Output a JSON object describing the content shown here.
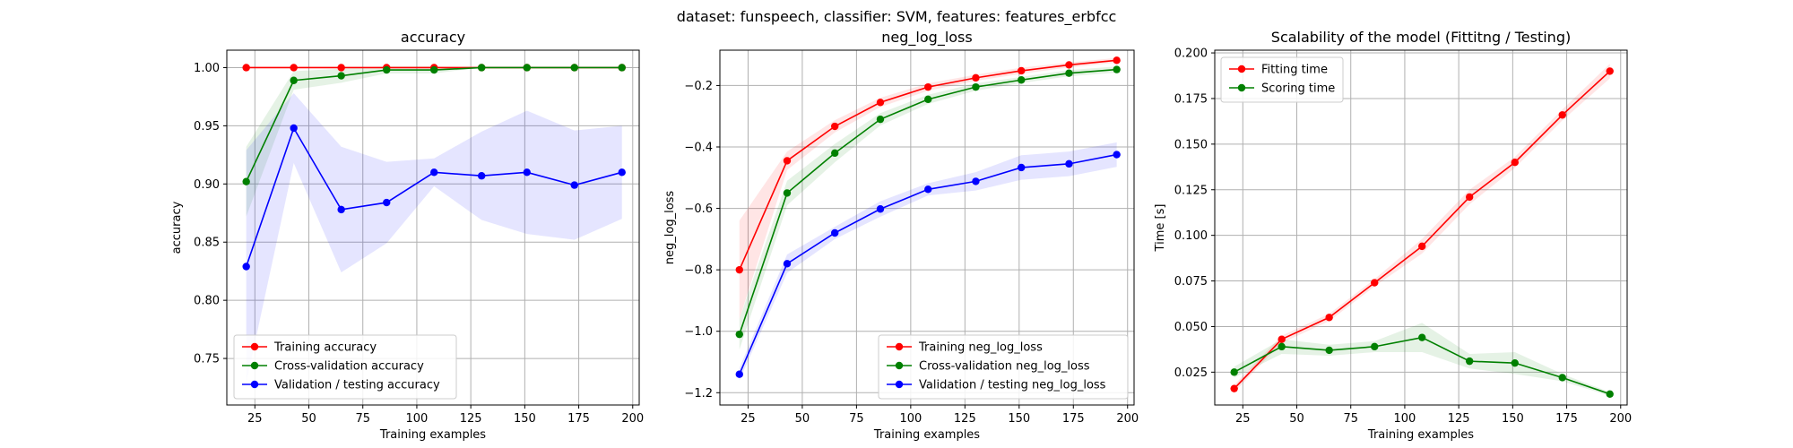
{
  "figure": {
    "suptitle": "dataset: funspeech, classifier: SVM, features: features_erbfcc"
  },
  "colors": {
    "red": "#ff0000",
    "green": "#008000",
    "blue": "#0000ff"
  },
  "chart_data": [
    {
      "type": "line",
      "title": "accuracy",
      "xlabel": "Training examples",
      "ylabel": "accuracy",
      "xlim": [
        12,
        203
      ],
      "ylim": [
        0.71,
        1.015
      ],
      "xticks": [
        25,
        50,
        75,
        100,
        125,
        150,
        175,
        200
      ],
      "yticks": [
        0.75,
        0.8,
        0.85,
        0.9,
        0.95,
        1.0
      ],
      "ytick_labels": [
        "0.75",
        "0.80",
        "0.85",
        "0.90",
        "0.95",
        "1.00"
      ],
      "grid": true,
      "legend": "lower-left",
      "x": [
        21,
        43,
        65,
        86,
        108,
        130,
        151,
        173,
        195
      ],
      "series": [
        {
          "name": "Training accuracy",
          "color": "red",
          "values": [
            1.0,
            1.0,
            1.0,
            1.0,
            1.0,
            1.0,
            1.0,
            1.0,
            1.0
          ],
          "band": [
            0,
            0,
            0,
            0,
            0,
            0,
            0,
            0,
            0
          ]
        },
        {
          "name": "Cross-validation accuracy",
          "color": "green",
          "values": [
            0.902,
            0.989,
            0.993,
            0.998,
            0.998,
            1.0,
            1.0,
            1.0,
            1.0
          ],
          "band": [
            0.03,
            0.008,
            0.006,
            0.003,
            0.003,
            0,
            0,
            0,
            0
          ]
        },
        {
          "name": "Validation / testing accuracy",
          "color": "blue",
          "values": [
            0.829,
            0.948,
            0.878,
            0.884,
            0.91,
            0.907,
            0.91,
            0.899,
            0.91
          ],
          "band": [
            0.1,
            0.03,
            0.054,
            0.035,
            0.012,
            0.038,
            0.053,
            0.047,
            0.04
          ]
        }
      ]
    },
    {
      "type": "line",
      "title": "neg_log_loss",
      "xlabel": "Training examples",
      "ylabel": "neg_log_loss",
      "xlim": [
        12,
        203
      ],
      "ylim": [
        -1.24,
        -0.085
      ],
      "xticks": [
        25,
        50,
        75,
        100,
        125,
        150,
        175,
        200
      ],
      "yticks": [
        -1.2,
        -1.0,
        -0.8,
        -0.6,
        -0.4,
        -0.2
      ],
      "ytick_labels": [
        "−1.2",
        "−1.0",
        "−0.8",
        "−0.6",
        "−0.4",
        "−0.2"
      ],
      "grid": true,
      "legend": "lower-right",
      "x": [
        21,
        43,
        65,
        86,
        108,
        130,
        151,
        173,
        195
      ],
      "series": [
        {
          "name": "Training neg_log_loss",
          "color": "red",
          "values": [
            -0.8,
            -0.445,
            -0.333,
            -0.255,
            -0.205,
            -0.175,
            -0.152,
            -0.133,
            -0.118
          ],
          "band": [
            0.16,
            0.03,
            0.02,
            0.015,
            0.012,
            0.01,
            0.01,
            0.008,
            0.008
          ]
        },
        {
          "name": "Cross-validation neg_log_loss",
          "color": "green",
          "values": [
            -1.01,
            -0.55,
            -0.42,
            -0.31,
            -0.245,
            -0.205,
            -0.182,
            -0.16,
            -0.148
          ],
          "band": [
            0.05,
            0.04,
            0.03,
            0.02,
            0.015,
            0.012,
            0.01,
            0.01,
            0.01
          ]
        },
        {
          "name": "Validation / testing neg_log_loss",
          "color": "blue",
          "values": [
            -1.14,
            -0.78,
            -0.68,
            -0.602,
            -0.538,
            -0.512,
            -0.467,
            -0.455,
            -0.425
          ],
          "band": [
            0.02,
            0.03,
            0.02,
            0.025,
            0.02,
            0.03,
            0.04,
            0.04,
            0.04
          ]
        }
      ]
    },
    {
      "type": "line",
      "title": "Scalability of the model (Fittitng / Testing)",
      "xlabel": "Training examples",
      "ylabel": "Time [s]",
      "xlim": [
        12,
        203
      ],
      "ylim": [
        0.007,
        0.2015
      ],
      "xticks": [
        25,
        50,
        75,
        100,
        125,
        150,
        175,
        200
      ],
      "yticks": [
        0.025,
        0.05,
        0.075,
        0.1,
        0.125,
        0.15,
        0.175,
        0.2
      ],
      "ytick_labels": [
        "0.025",
        "0.050",
        "0.075",
        "0.100",
        "0.125",
        "0.150",
        "0.175",
        "0.200"
      ],
      "grid": true,
      "legend": "upper-left",
      "x": [
        21,
        43,
        65,
        86,
        108,
        130,
        151,
        173,
        195
      ],
      "series": [
        {
          "name": "Fitting time",
          "color": "red",
          "values": [
            0.016,
            0.043,
            0.055,
            0.074,
            0.094,
            0.121,
            0.14,
            0.166,
            0.19
          ],
          "band": [
            0.002,
            0.002,
            0.002,
            0.002,
            0.004,
            0.004,
            0.003,
            0.003,
            0.004
          ]
        },
        {
          "name": "Scoring time",
          "color": "green",
          "values": [
            0.025,
            0.039,
            0.037,
            0.039,
            0.044,
            0.031,
            0.03,
            0.022,
            0.013
          ],
          "band": [
            0.003,
            0.004,
            0.003,
            0.003,
            0.008,
            0.004,
            0.006,
            0.002,
            0.001
          ]
        }
      ]
    }
  ]
}
